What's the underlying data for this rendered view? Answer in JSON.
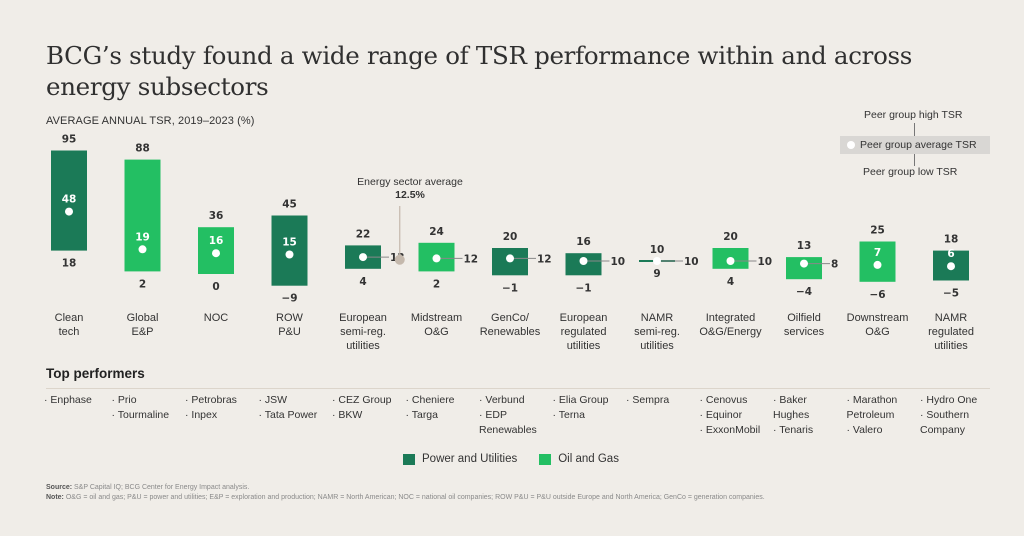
{
  "title": "BCG’s study found a wide range of TSR performance within and across energy subsectors",
  "subtitle": "AVERAGE ANNUAL TSR, 2019–2023 (%)",
  "colors": {
    "power_utilities": "#1b7a57",
    "oil_gas": "#23bf63",
    "avg_marker": "#c4b8ac",
    "background": "#f0ede8"
  },
  "key": {
    "high": "Peer group high TSR",
    "average": "Peer group average TSR",
    "low": "Peer group low TSR"
  },
  "energy_average": {
    "label": "Energy sector average",
    "value_label": "12.5%",
    "value": 12.5
  },
  "chart_data": {
    "type": "range-bar",
    "title": "BCG’s study found a wide range of TSR performance within and across energy subsectors",
    "ylabel": "Average annual TSR, 2019–2023 (%)",
    "grid": false,
    "legend": "bottom-center",
    "series_names": [
      "Power and Utilities",
      "Oil and Gas"
    ],
    "categories": [
      {
        "label": "Clean\ntech",
        "group": "Power and Utilities",
        "high": 95,
        "avg": 48,
        "low": 18
      },
      {
        "label": "Global\nE&P",
        "group": "Oil and Gas",
        "high": 88,
        "avg": 19,
        "low": 2
      },
      {
        "label": "NOC",
        "group": "Oil and Gas",
        "high": 36,
        "avg": 16,
        "low": 0
      },
      {
        "label": "ROW\nP&U",
        "group": "Power and Utilities",
        "high": 45,
        "avg": 15,
        "low": -9
      },
      {
        "label": "European\nsemi-reg.\nutilities",
        "group": "Power and Utilities",
        "high": 22,
        "avg": 13,
        "low": 4
      },
      {
        "label": "Midstream\nO&G",
        "group": "Oil and Gas",
        "high": 24,
        "avg": 12,
        "low": 2
      },
      {
        "label": "GenCo/\nRenewables",
        "group": "Power and Utilities",
        "high": 20,
        "avg": 12,
        "low": -1
      },
      {
        "label": "European\nregulated\nutilities",
        "group": "Power and Utilities",
        "high": 16,
        "avg": 10,
        "low": -1
      },
      {
        "label": "NAMR\nsemi-reg.\nutilities",
        "group": "Power and Utilities",
        "high": 10,
        "avg": 10,
        "low": 9
      },
      {
        "label": "Integrated\nO&G/Energy",
        "group": "Oil and Gas",
        "high": 20,
        "avg": 10,
        "low": 4
      },
      {
        "label": "Oilfield\nservices",
        "group": "Oil and Gas",
        "high": 13,
        "avg": 8,
        "low": -4
      },
      {
        "label": "Downstream\nO&G",
        "group": "Oil and Gas",
        "high": 25,
        "avg": 7,
        "low": -6
      },
      {
        "label": "NAMR\nregulated\nutilities",
        "group": "Power and Utilities",
        "high": 18,
        "avg": 6,
        "low": -5
      }
    ],
    "value_labels": {
      "high": [
        "95",
        "88",
        "36",
        "45",
        "22",
        "24",
        "20",
        "16",
        "10",
        "20",
        "13",
        "25",
        "18"
      ],
      "avg": [
        "48",
        "19",
        "16",
        "15",
        "13",
        "12",
        "12",
        "10",
        "10",
        "10",
        "8",
        "7",
        "6"
      ],
      "low": [
        "18",
        "2",
        "0",
        "−9",
        "4",
        "2",
        "−1",
        "−1",
        "9",
        "4",
        "−4",
        "−6",
        "−5"
      ]
    },
    "avg_label_position": [
      "inside",
      "inside",
      "inside",
      "inside",
      "right",
      "right",
      "right",
      "right",
      "right",
      "right",
      "right",
      "inside",
      "inside"
    ]
  },
  "top_performers": {
    "heading": "Top performers",
    "columns": [
      [
        "· Enphase"
      ],
      [
        "· Prio",
        "· Tourmaline"
      ],
      [
        "· Petrobras",
        "· Inpex"
      ],
      [
        "· JSW",
        "· Tata Power"
      ],
      [
        "· CEZ Group",
        "· BKW"
      ],
      [
        "· Cheniere",
        "· Targa"
      ],
      [
        "· Verbund",
        "· EDP\n  Renewables"
      ],
      [
        "· Elia Group",
        "· Terna"
      ],
      [
        "· Sempra"
      ],
      [
        "· Cenovus",
        "· Equinor",
        "· ExxonMobil"
      ],
      [
        "· Baker\n  Hughes",
        "· Tenaris"
      ],
      [
        "· Marathon\n  Petroleum",
        "· Valero"
      ],
      [
        "· Hydro One",
        "· Southern\n  Company"
      ]
    ]
  },
  "legend": {
    "power_utilities": "Power and Utilities",
    "oil_gas": "Oil and Gas"
  },
  "footer": {
    "source_label": "Source:",
    "source_text": " S&P Capital IQ; BCG Center for Energy Impact analysis.",
    "note_label": "Note:",
    "note_text": " O&G = oil and gas; P&U = power and utilities; E&P = exploration and production; NAMR = North American; NOC = national oil companies; ROW P&U = P&U outside Europe and North America; GenCo = generation companies."
  }
}
